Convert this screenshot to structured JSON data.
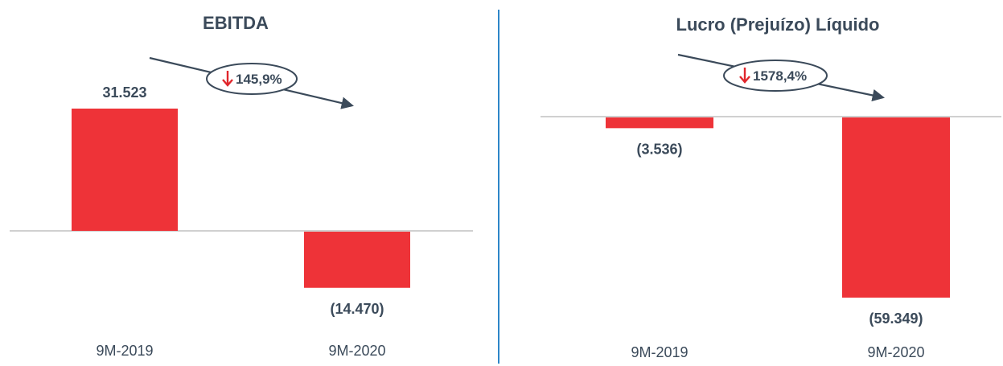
{
  "colors": {
    "bar": "#ee3338",
    "text": "#3b4a5a",
    "arrow": "#3b4a5a",
    "down_arrow": "#e0262c",
    "divider": "#2e86c8",
    "axis": "#c0c0c0"
  },
  "chart_data": [
    {
      "type": "bar",
      "title": "EBITDA",
      "categories": [
        "9M-2019",
        "9M-2020"
      ],
      "values": [
        31523,
        -14470
      ],
      "value_labels": [
        "31.523",
        "(14.470)"
      ],
      "change_badge": {
        "direction": "down",
        "text": "145,9%",
        "icon": "down-arrow-icon"
      }
    },
    {
      "type": "bar",
      "title": "Lucro (Prejuízo) Líquido",
      "categories": [
        "9M-2019",
        "9M-2020"
      ],
      "values": [
        -3536,
        -59349
      ],
      "value_labels": [
        "(3.536)",
        "(59.349)"
      ],
      "change_badge": {
        "direction": "down",
        "text": "1578,4%",
        "icon": "down-arrow-icon"
      }
    }
  ]
}
